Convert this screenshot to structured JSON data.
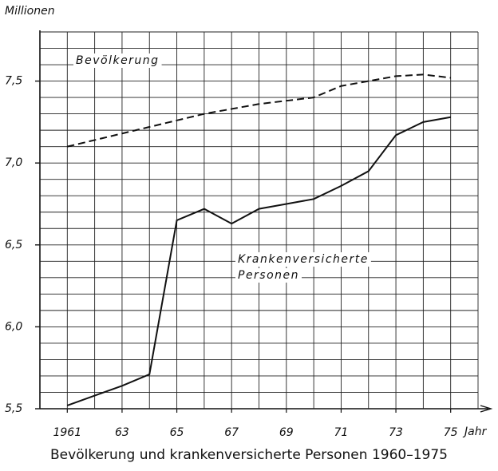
{
  "chart_data": {
    "type": "line",
    "y_axis_label": "Millionen",
    "x_axis_label": "Jahr",
    "caption": "Bevölkerung und krankenversicherte Personen 1960–1975",
    "x": [
      1961,
      1962,
      1963,
      1964,
      1965,
      1966,
      1967,
      1968,
      1969,
      1970,
      1971,
      1972,
      1973,
      1974,
      1975
    ],
    "series": [
      {
        "color": "#111111",
        "dashed": true,
        "values": [
          7.1,
          7.14,
          7.18,
          7.22,
          7.26,
          7.3,
          7.33,
          7.36,
          7.38,
          7.4,
          7.47,
          7.5,
          7.53,
          7.54,
          7.52
        ]
      },
      {
        "color": "#111111",
        "dashed": false,
        "values": [
          5.52,
          5.58,
          5.64,
          5.71,
          6.65,
          6.72,
          6.63,
          6.72,
          6.75,
          6.78,
          6.86,
          6.95,
          7.17,
          7.25,
          7.28
        ]
      }
    ],
    "annotations": [
      "Bevölkerung",
      "Krankenversicherte",
      "Personen"
    ],
    "xlim": [
      1960,
      1976
    ],
    "ylim": [
      5.5,
      7.8
    ],
    "xticks": [
      1961,
      {
        "value": 1963,
        "label": "63"
      },
      {
        "value": 1965,
        "label": "65"
      },
      {
        "value": 1967,
        "label": "67"
      },
      {
        "value": 1969,
        "label": "69"
      },
      {
        "value": 1971,
        "label": "71"
      },
      {
        "value": 1973,
        "label": "73"
      },
      {
        "value": 1975,
        "label": "75"
      }
    ],
    "yticks": [
      {
        "value": 5.5,
        "label": "5,5"
      },
      {
        "value": 6.0,
        "label": "6,0"
      },
      {
        "value": 6.5,
        "label": "6,5"
      },
      {
        "value": 7.0,
        "label": "7,0"
      },
      {
        "value": 7.5,
        "label": "7,5"
      }
    ],
    "minor_xticks": [
      1961,
      1962,
      1963,
      1964,
      1965,
      1966,
      1967,
      1968,
      1969,
      1970,
      1971,
      1972,
      1973,
      1974,
      1975,
      1976
    ],
    "minor_yticks": [
      5.6,
      5.7,
      5.8,
      5.9,
      6.0,
      6.1,
      6.2,
      6.3,
      6.4,
      6.5,
      6.6,
      6.7,
      6.8,
      6.9,
      7.0,
      7.1,
      7.2,
      7.3,
      7.4,
      7.5,
      7.6,
      7.7,
      7.8
    ],
    "grid": true
  }
}
